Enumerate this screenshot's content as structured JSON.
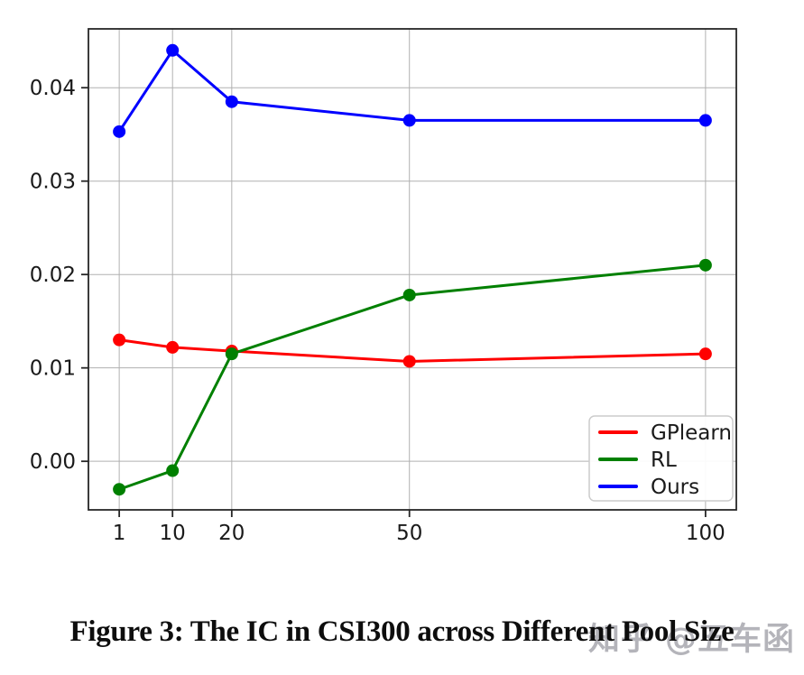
{
  "figure": {
    "caption": "Figure 3: The IC in CSI300 across Different Pool Size",
    "watermark": "知乎 @五车函"
  },
  "chart_data": {
    "type": "line",
    "title": "",
    "xlabel": "",
    "ylabel": "",
    "x": [
      1,
      10,
      20,
      50,
      100
    ],
    "x_tick_labels": [
      "1",
      "10",
      "20",
      "50",
      "100"
    ],
    "y_tick_values": [
      0.0,
      0.01,
      0.02,
      0.03,
      0.04
    ],
    "y_tick_labels": [
      "0.00",
      "0.01",
      "0.02",
      "0.03",
      "0.04"
    ],
    "xlim": [
      -4.2,
      105.2
    ],
    "ylim": [
      -0.0052,
      0.0463
    ],
    "grid": true,
    "legend": {
      "position": "lower right",
      "entries": [
        "GPlearn",
        "RL",
        "Ours"
      ]
    },
    "series": [
      {
        "name": "GPlearn",
        "color": "#ff0000",
        "values": [
          0.013,
          0.0122,
          0.0118,
          0.0107,
          0.0115
        ]
      },
      {
        "name": "RL",
        "color": "#008000",
        "values": [
          -0.003,
          -0.001,
          0.0115,
          0.0178,
          0.021
        ]
      },
      {
        "name": "Ours",
        "color": "#0000ff",
        "values": [
          0.0353,
          0.044,
          0.0385,
          0.0365,
          0.0365
        ]
      }
    ],
    "marker": "circle",
    "line_width": 3,
    "marker_radius": 7
  },
  "style": {
    "grid_color": "#b0b0b0",
    "spine_color": "#262626",
    "tick_color": "#262626",
    "tick_label_color": "#1a1a1a",
    "legend_bg": "rgba(255,255,255,0.93)",
    "legend_border_color": "#cccccc",
    "legend_text_color": "#1a1a1a"
  }
}
